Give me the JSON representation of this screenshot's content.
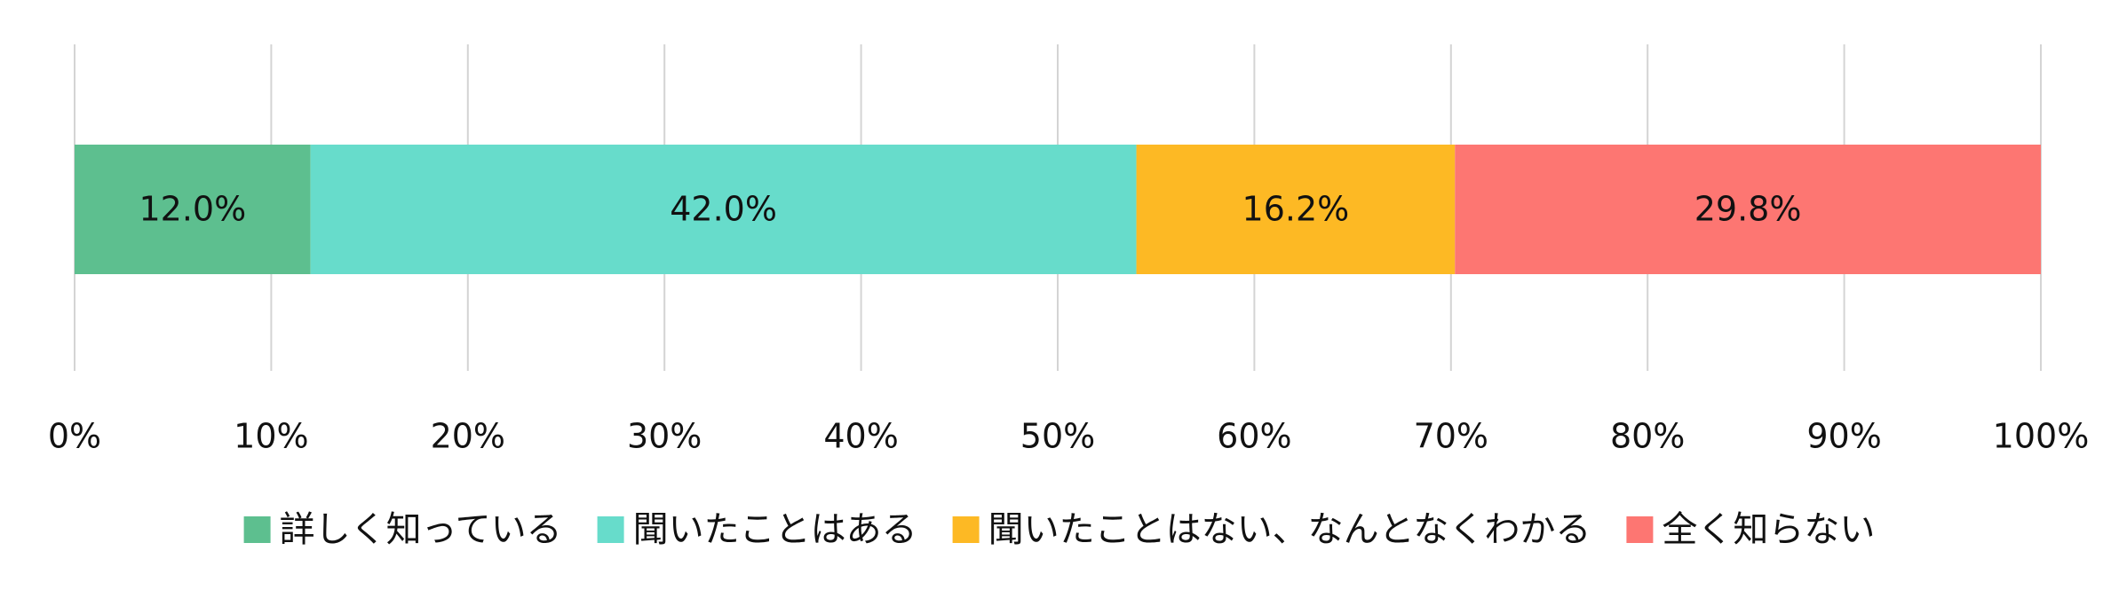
{
  "chart_data": {
    "type": "stacked-bar-horizontal",
    "categories": [
      null
    ],
    "series": [
      {
        "name": "詳しく知っている",
        "color": "#5dbf8f",
        "values": [
          12.0
        ],
        "value_labels": [
          "12.0%"
        ]
      },
      {
        "name": "聞いたことはある",
        "color": "#67dccb",
        "values": [
          42.0
        ],
        "value_labels": [
          "42.0%"
        ]
      },
      {
        "name": "聞いたことはない、なんとなくわかる",
        "color": "#fdb924",
        "values": [
          16.2
        ],
        "value_labels": [
          "16.2%"
        ]
      },
      {
        "name": "全く知らない",
        "color": "#fd7672",
        "values": [
          29.8
        ],
        "value_labels": [
          "29.8%"
        ]
      }
    ],
    "xlim": [
      0,
      100
    ],
    "xticks": [
      {
        "value": 0,
        "label": "0%"
      },
      {
        "value": 10,
        "label": "10%"
      },
      {
        "value": 20,
        "label": "20%"
      },
      {
        "value": 30,
        "label": "30%"
      },
      {
        "value": 40,
        "label": "40%"
      },
      {
        "value": 50,
        "label": "50%"
      },
      {
        "value": 60,
        "label": "60%"
      },
      {
        "value": 70,
        "label": "70%"
      },
      {
        "value": 80,
        "label": "80%"
      },
      {
        "value": 90,
        "label": "90%"
      },
      {
        "value": 100,
        "label": "100%"
      }
    ],
    "grid": true,
    "legend": "bottom"
  }
}
